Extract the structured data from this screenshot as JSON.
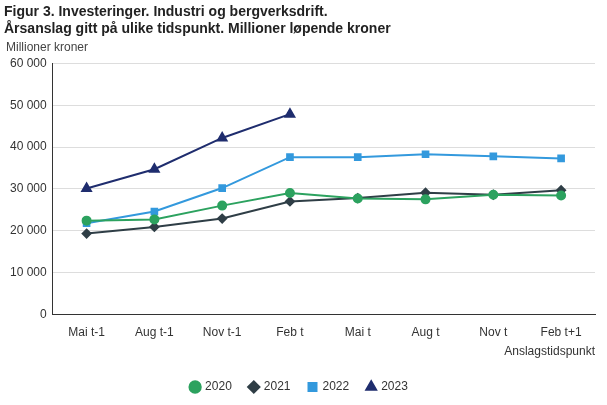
{
  "chart_data": {
    "type": "line",
    "title": [
      "Figur 3. Investeringer. Industri og bergverksdrift.",
      "Årsanslag gitt på ulike tidspunkt. Millioner løpende kroner"
    ],
    "y_label": "Millioner kroner",
    "x_label": "Anslagstidspunkt",
    "categories": [
      "Mai t-1",
      "Aug t-1",
      "Nov t-1",
      "Feb t",
      "Mai t",
      "Aug t",
      "Nov t",
      "Feb t+1"
    ],
    "series": [
      {
        "name": "2020",
        "color": "#2ca25f",
        "marker": "circle",
        "values": [
          22400,
          22700,
          26000,
          29000,
          27700,
          27500,
          28600,
          28400
        ]
      },
      {
        "name": "2021",
        "color": "#2f3e46",
        "marker": "diamond",
        "values": [
          19300,
          20900,
          22900,
          27000,
          27800,
          29100,
          28600,
          29700
        ]
      },
      {
        "name": "2022",
        "color": "#3399dd",
        "marker": "square",
        "values": [
          21800,
          24600,
          30200,
          37600,
          37600,
          38300,
          37800,
          37300
        ]
      },
      {
        "name": "2023",
        "color": "#1f2d6e",
        "marker": "triangle",
        "values": [
          30100,
          34700,
          42200,
          47900,
          null,
          null,
          null,
          null
        ]
      }
    ],
    "ylim": [
      0,
      60000
    ],
    "yticks": [
      0,
      {
        "value": 10000,
        "label": "10 000"
      },
      {
        "value": 20000,
        "label": "20 000"
      },
      {
        "value": 30000,
        "label": "30 000"
      },
      {
        "value": 40000,
        "label": "40 000"
      },
      {
        "value": 50000,
        "label": "50 000"
      },
      {
        "value": 60000,
        "label": "60 000"
      }
    ],
    "grid": true,
    "legend": "bottom"
  }
}
